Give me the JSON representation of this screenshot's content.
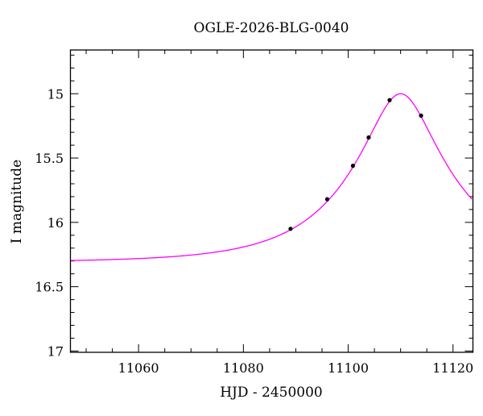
{
  "chart_data": {
    "type": "scatter",
    "title": "OGLE-2026-BLG-0040",
    "xlabel": "HJD - 2450000",
    "ylabel": "I magnitude",
    "xlim": [
      11047,
      11123.8
    ],
    "ylim": [
      14.66,
      17.01
    ],
    "y_inverted": true,
    "grid": false,
    "x_ticks": [
      11060,
      11080,
      11100,
      11120
    ],
    "x_tick_labels": [
      "11060",
      "11080",
      "11100",
      "11120"
    ],
    "y_ticks": [
      15,
      15.5,
      16,
      16.5,
      17
    ],
    "y_tick_labels": [
      "15",
      "15.5",
      "16",
      "16.5",
      "17"
    ],
    "series": [
      {
        "type": "scatter",
        "color": "#000000",
        "x": [
          11089.0,
          11096.0,
          11100.9,
          11103.9,
          11107.9,
          11113.9
        ],
        "y": [
          16.05,
          15.82,
          15.56,
          15.34,
          15.05,
          15.17
        ]
      },
      {
        "type": "line",
        "model": "point-lens microlensing fit",
        "color": "#ff00ff",
        "t0": 11110.0,
        "u0": 0.31,
        "tE": 19.3,
        "baseline_mag": 16.31
      }
    ]
  }
}
